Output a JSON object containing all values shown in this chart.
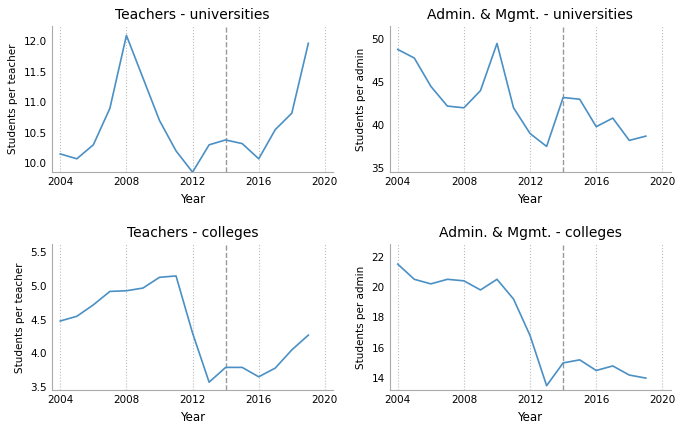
{
  "teachers_uni": {
    "title": "Teachers - universities",
    "ylabel": "Students per teacher",
    "xlabel": "Year",
    "years": [
      2004,
      2005,
      2006,
      2007,
      2008,
      2009,
      2010,
      2011,
      2012,
      2013,
      2014,
      2015,
      2016,
      2017,
      2018,
      2019
    ],
    "values": [
      10.15,
      10.07,
      10.3,
      10.9,
      12.1,
      11.4,
      10.7,
      10.2,
      9.85,
      10.3,
      10.38,
      10.32,
      10.07,
      10.55,
      10.82,
      11.97
    ],
    "ylim": [
      9.85,
      12.25
    ],
    "yticks": [
      10.0,
      10.5,
      11.0,
      11.5,
      12.0
    ]
  },
  "admin_uni": {
    "title": "Admin. & Mgmt. - universities",
    "ylabel": "Students per admin",
    "xlabel": "Year",
    "years": [
      2004,
      2005,
      2006,
      2007,
      2008,
      2009,
      2010,
      2011,
      2012,
      2013,
      2014,
      2015,
      2016,
      2017,
      2018,
      2019
    ],
    "values": [
      48.8,
      47.8,
      44.5,
      42.2,
      42.0,
      44.0,
      49.5,
      42.0,
      39.0,
      37.5,
      43.2,
      43.0,
      39.8,
      40.8,
      38.2,
      38.7
    ],
    "ylim": [
      34.5,
      51.5
    ],
    "yticks": [
      35,
      40,
      45,
      50
    ]
  },
  "teachers_col": {
    "title": "Teachers - colleges",
    "ylabel": "Students per teacher",
    "xlabel": "Year",
    "years": [
      2004,
      2005,
      2006,
      2007,
      2008,
      2009,
      2010,
      2011,
      2012,
      2013,
      2014,
      2015,
      2016,
      2017,
      2018,
      2019
    ],
    "values": [
      4.48,
      4.55,
      4.72,
      4.92,
      4.93,
      4.97,
      5.13,
      5.15,
      4.3,
      3.57,
      3.79,
      3.79,
      3.65,
      3.78,
      4.05,
      4.27
    ],
    "ylim": [
      3.45,
      5.62
    ],
    "yticks": [
      3.5,
      4.0,
      4.5,
      5.0,
      5.5
    ]
  },
  "admin_col": {
    "title": "Admin. & Mgmt. - colleges",
    "ylabel": "Students per admin",
    "xlabel": "Year",
    "years": [
      2004,
      2005,
      2006,
      2007,
      2008,
      2009,
      2010,
      2011,
      2012,
      2013,
      2014,
      2015,
      2016,
      2017,
      2018,
      2019
    ],
    "values": [
      21.5,
      20.5,
      20.2,
      20.5,
      20.4,
      19.8,
      20.5,
      19.2,
      16.8,
      13.5,
      15.0,
      15.2,
      14.5,
      14.8,
      14.2,
      14.0
    ],
    "ylim": [
      13.2,
      22.8
    ],
    "yticks": [
      14,
      16,
      18,
      20,
      22
    ]
  },
  "line_color": "#4a90c4",
  "dashed_color": "#999999",
  "dotted_color": "#bbbbbb",
  "xlim": [
    2003.5,
    2020.5
  ],
  "xticks": [
    2004,
    2008,
    2012,
    2016,
    2020
  ],
  "dashed_line_x": 2014,
  "dotted_lines_x": [
    2004,
    2008,
    2012,
    2016,
    2020
  ]
}
